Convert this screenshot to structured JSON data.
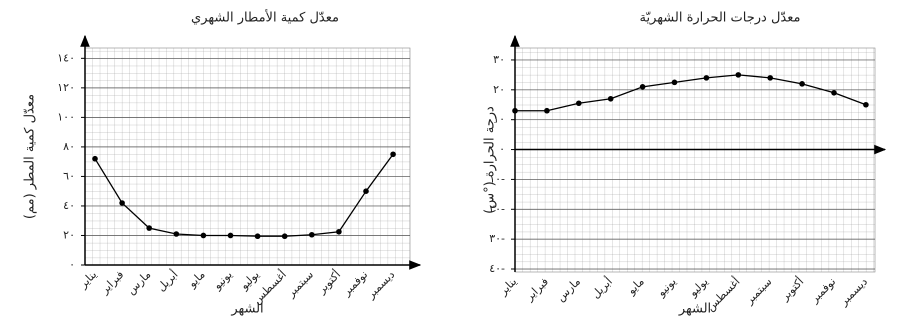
{
  "chart_data": [
    {
      "type": "line",
      "title": "معدّل كمية الأمطار الشهري",
      "x_label": "الشهر",
      "y_label": "معدّل كمية المطر (مم)",
      "categories": [
        "يناير",
        "فبراير",
        "مارس",
        "أبريل",
        "مايو",
        "يونيو",
        "يوليو",
        "أغسطس",
        "سبتمبر",
        "أكتوبر",
        "نوفمبر",
        "ديسمبر"
      ],
      "values": [
        72,
        42,
        25,
        21,
        20,
        20,
        19.5,
        19.5,
        20.5,
        22.5,
        50,
        75
      ],
      "color": "#000000",
      "ylim": [
        0,
        147
      ],
      "yticks": [
        {
          "value": 0,
          "label": "٠"
        },
        {
          "value": 20,
          "label": "٢٠"
        },
        {
          "value": 40,
          "label": "٤٠"
        },
        {
          "value": 60,
          "label": "٦٠"
        },
        {
          "value": 80,
          "label": "٨٠"
        },
        {
          "value": 100,
          "label": "١٠٠"
        },
        {
          "value": 120,
          "label": "١٢٠"
        },
        {
          "value": 140,
          "label": "١٤٠"
        }
      ],
      "grid": true
    },
    {
      "type": "line",
      "title": "معدّل درجات الحرارة الشهريّة",
      "x_label": "الشهر",
      "y_label": "درجة الحرارة (°س)",
      "categories": [
        "يناير",
        "فبراير",
        "مارس",
        "أبريل",
        "مايو",
        "يونيو",
        "يوليو",
        "أغسطس",
        "سبتمبر",
        "أكتوبر",
        "نوفمبر",
        "ديسمبر"
      ],
      "values": [
        13,
        13,
        15.5,
        17,
        21,
        22.5,
        24,
        25,
        24,
        22,
        19,
        15
      ],
      "color": "#000000",
      "ylim": [
        -41,
        34
      ],
      "yticks": [
        {
          "value": -40,
          "label": "٤٠-"
        },
        {
          "value": -30,
          "label": "٣٠-"
        },
        {
          "value": -20,
          "label": "٢٠-"
        },
        {
          "value": -10,
          "label": "١٠-"
        },
        {
          "value": 0,
          "label": "٠"
        },
        {
          "value": 10,
          "label": "١٠"
        },
        {
          "value": 20,
          "label": "٢٠"
        },
        {
          "value": 30,
          "label": "٣٠"
        }
      ],
      "grid": true
    }
  ]
}
